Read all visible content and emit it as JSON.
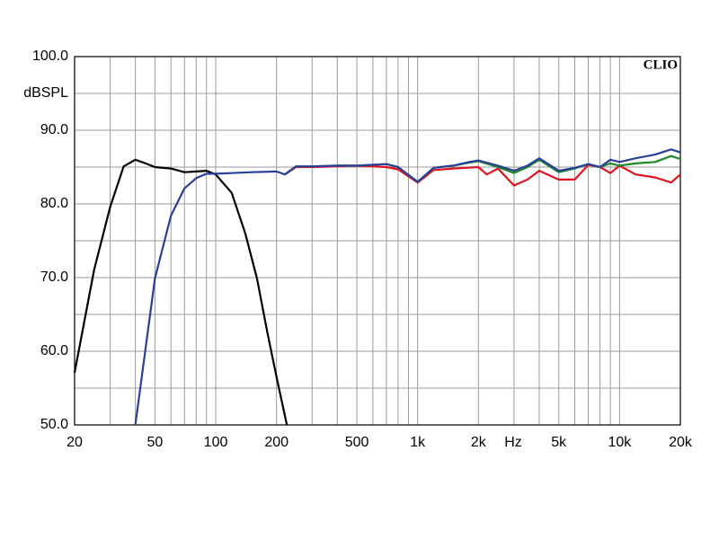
{
  "chart_data": {
    "type": "line",
    "xscale": "log",
    "grid": true,
    "ylabel": "dBSPL",
    "xlabel": "Hz",
    "annotation": "CLIO",
    "xlim": [
      20,
      20000
    ],
    "ylim": [
      50,
      100
    ],
    "xticks": [
      20,
      50,
      100,
      200,
      500,
      {
        "value": 1000,
        "label": "1k"
      },
      {
        "value": 2000,
        "label": "2k"
      },
      {
        "value": 5000,
        "label": "5k"
      },
      {
        "value": 10000,
        "label": "10k"
      },
      {
        "value": 20000,
        "label": "20k"
      }
    ],
    "x_minor_ticks": [
      30,
      40,
      60,
      70,
      80,
      90,
      300,
      400,
      600,
      700,
      800,
      900,
      3000,
      4000,
      6000,
      7000,
      8000,
      9000
    ],
    "yticks": [
      {
        "value": 50,
        "label": "50.0"
      },
      {
        "value": 60,
        "label": "60.0"
      },
      {
        "value": 70,
        "label": "70.0"
      },
      {
        "value": 80,
        "label": "80.0"
      },
      {
        "value": 90,
        "label": "90.0"
      },
      {
        "value": 100,
        "label": "100.0"
      }
    ],
    "y_minor_ticks": [
      55,
      65,
      75,
      85,
      95
    ],
    "series": [
      {
        "color": "#000000",
        "x": [
          20,
          25,
          30,
          35,
          40,
          45,
          50,
          60,
          70,
          80,
          90,
          100,
          120,
          140,
          160,
          180,
          200,
          225
        ],
        "values": [
          57.1,
          71.1,
          79.6,
          85.1,
          86,
          85.5,
          85,
          84.8,
          84.3,
          84.4,
          84.5,
          84,
          81.5,
          76,
          69.9,
          62.6,
          56.5,
          50
        ]
      },
      {
        "color": "#e0141e",
        "x": [
          220,
          250,
          300,
          500,
          700,
          800,
          1000,
          1200,
          1500,
          2000,
          2200,
          2500,
          3000,
          3500,
          4000,
          5000,
          6000,
          7000,
          8000,
          9000,
          10000,
          12000,
          15000,
          18000,
          20000
        ],
        "values": [
          84,
          85,
          85,
          85.2,
          85,
          84.7,
          82.9,
          84.6,
          84.8,
          85,
          84,
          84.8,
          82.5,
          83.3,
          84.5,
          83.3,
          83.3,
          85.3,
          85,
          84.2,
          85.2,
          84,
          83.6,
          82.9,
          84
        ]
      },
      {
        "color": "#1a8a2a",
        "x": [
          220,
          250,
          300,
          400,
          500,
          700,
          800,
          1000,
          1200,
          1500,
          1800,
          2000,
          2500,
          3000,
          3500,
          4000,
          5000,
          6000,
          7000,
          8000,
          9000,
          10000,
          12000,
          15000,
          18000,
          20000
        ],
        "values": [
          84,
          85.1,
          85.1,
          85.2,
          85.2,
          85.4,
          85,
          83,
          84.9,
          85.2,
          85.6,
          85.8,
          85,
          84.2,
          85,
          86,
          84.3,
          84.8,
          85.4,
          85,
          85.5,
          85.2,
          85.5,
          85.7,
          86.5,
          86.1
        ]
      },
      {
        "color": "#2a3f9a",
        "x": [
          40,
          50,
          60,
          70,
          80,
          90,
          100,
          150,
          200,
          220,
          250,
          300,
          400,
          500,
          700,
          800,
          1000,
          1200,
          1500,
          1800,
          2000,
          2500,
          3000,
          3500,
          4000,
          5000,
          6000,
          7000,
          8000,
          9000,
          10000,
          12000,
          15000,
          18000,
          20000
        ],
        "values": [
          50,
          69.9,
          78.4,
          82.1,
          83.5,
          84.1,
          84.1,
          84.3,
          84.4,
          84,
          85.1,
          85.1,
          85.2,
          85.2,
          85.4,
          85,
          83,
          84.9,
          85.2,
          85.7,
          85.9,
          85.2,
          84.5,
          85.2,
          86.2,
          84.5,
          84.9,
          85.4,
          85,
          86,
          85.7,
          86.2,
          86.7,
          87.4,
          87
        ]
      }
    ]
  }
}
